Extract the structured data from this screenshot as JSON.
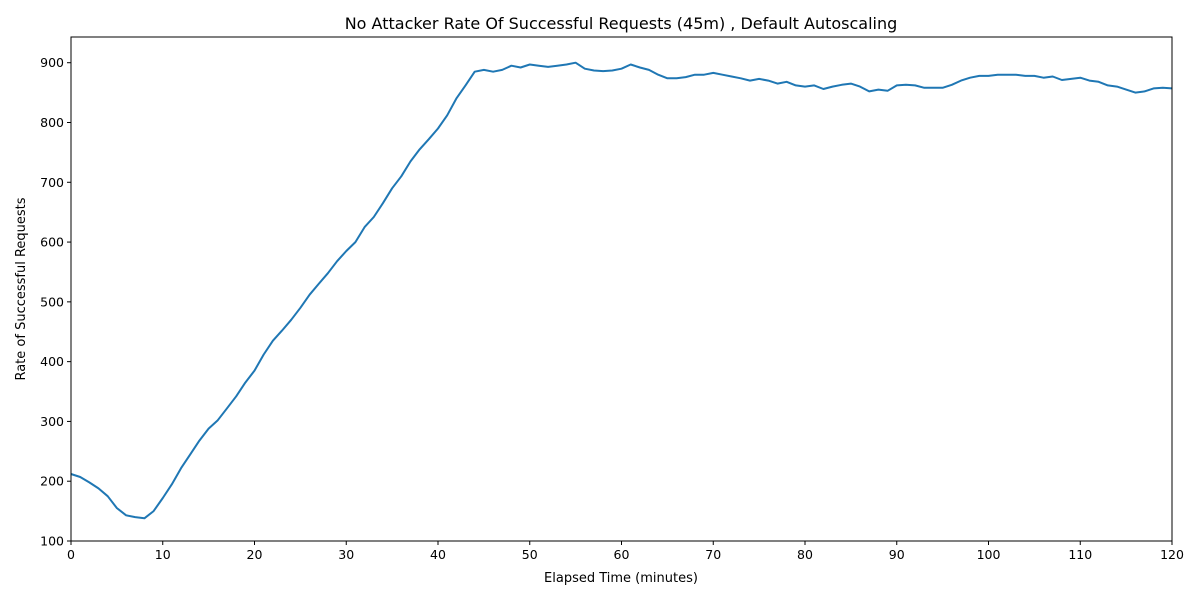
{
  "chart_data": {
    "type": "line",
    "title": "No Attacker Rate Of Successful Requests (45m) , Default Autoscaling",
    "xlabel": "Elapsed Time (minutes)",
    "ylabel": "Rate of Successful Requests",
    "xlim": [
      0,
      120
    ],
    "ylim": [
      100,
      943
    ],
    "xticks": [
      0,
      10,
      20,
      30,
      40,
      50,
      60,
      70,
      80,
      90,
      100,
      110,
      120
    ],
    "yticks": [
      100,
      200,
      300,
      400,
      500,
      600,
      700,
      800,
      900
    ],
    "grid": false,
    "legend": "none",
    "series": [
      {
        "color": "#1f77b4",
        "x": [
          0,
          1,
          2,
          3,
          4,
          5,
          6,
          7,
          8,
          9,
          10,
          11,
          12,
          13,
          14,
          15,
          16,
          17,
          18,
          19,
          20,
          21,
          22,
          23,
          24,
          25,
          26,
          27,
          28,
          29,
          30,
          31,
          32,
          33,
          34,
          35,
          36,
          37,
          38,
          39,
          40,
          41,
          42,
          43,
          44,
          45,
          46,
          47,
          48,
          49,
          50,
          51,
          52,
          53,
          54,
          55,
          56,
          57,
          58,
          59,
          60,
          61,
          62,
          63,
          64,
          65,
          66,
          67,
          68,
          69,
          70,
          71,
          72,
          73,
          74,
          75,
          76,
          77,
          78,
          79,
          80,
          81,
          82,
          83,
          84,
          85,
          86,
          87,
          88,
          89,
          90,
          91,
          92,
          93,
          94,
          95,
          96,
          97,
          98,
          99,
          100,
          101,
          102,
          103,
          104,
          105,
          106,
          107,
          108,
          109,
          110,
          111,
          112,
          113,
          114,
          115,
          116,
          117,
          118,
          119,
          120
        ],
        "values": [
          212,
          207,
          198,
          188,
          175,
          155,
          143,
          140,
          138,
          150,
          172,
          195,
          222,
          245,
          268,
          288,
          302,
          322,
          342,
          365,
          385,
          412,
          435,
          452,
          470,
          490,
          512,
          530,
          548,
          568,
          585,
          600,
          625,
          642,
          665,
          690,
          710,
          735,
          755,
          772,
          790,
          812,
          840,
          862,
          885,
          888,
          885,
          888,
          895,
          892,
          897,
          895,
          893,
          895,
          897,
          900,
          890,
          887,
          886,
          887,
          890,
          897,
          892,
          888,
          880,
          874,
          874,
          876,
          880,
          880,
          883,
          880,
          877,
          874,
          870,
          873,
          870,
          865,
          868,
          862,
          860,
          862,
          856,
          860,
          863,
          865,
          860,
          852,
          855,
          853,
          862,
          863,
          862,
          858,
          858,
          858,
          863,
          870,
          875,
          878,
          878,
          880,
          880,
          880,
          878,
          878,
          875,
          877,
          871,
          873,
          875,
          870,
          868,
          862,
          860,
          855,
          850,
          852,
          857,
          858,
          857
        ]
      }
    ]
  }
}
